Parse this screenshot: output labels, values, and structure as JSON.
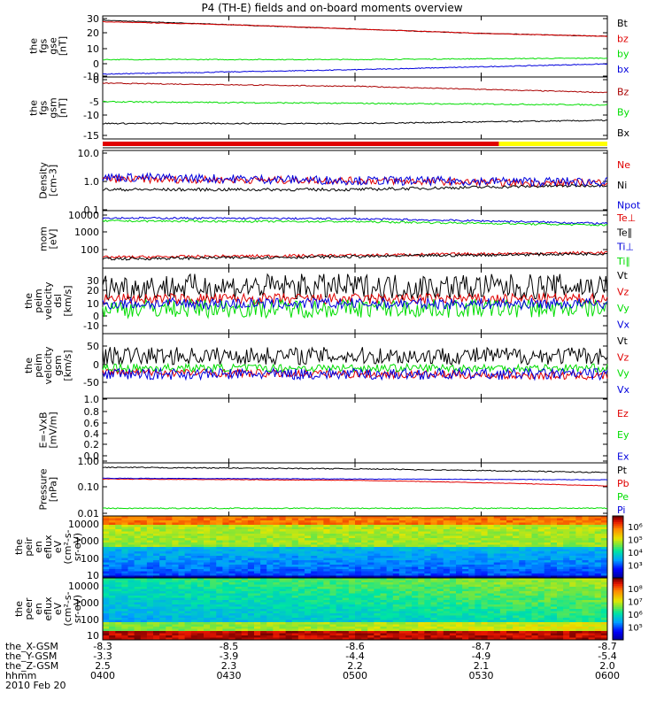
{
  "title": "P4 (TH-E) fields and on-board moments overview",
  "colors": {
    "black": "#000000",
    "red": "#e00000",
    "green": "#00dd00",
    "blue": "#0000dd",
    "yellow": "#ffff00",
    "darkred": "#aa0000"
  },
  "chart_data": [
    {
      "type": "line",
      "ylabel": [
        "the",
        "fgs",
        "gse",
        "[nT]"
      ],
      "yticks": [
        30,
        20,
        10,
        0,
        -10
      ],
      "ylim": [
        -10,
        32
      ],
      "legend": [
        {
          "label": "Bt",
          "color": "black"
        },
        {
          "label": "bz",
          "color": "red"
        },
        {
          "label": "by",
          "color": "green"
        },
        {
          "label": "bx",
          "color": "blue"
        }
      ],
      "series": [
        {
          "name": "Bt",
          "x_hours": [
            4.0,
            4.5,
            5.0,
            5.5,
            6.0
          ],
          "values": [
            29,
            26,
            23,
            20,
            18
          ]
        },
        {
          "name": "bz",
          "x_hours": [
            4.0,
            4.5,
            5.0,
            5.5,
            6.0
          ],
          "values": [
            28,
            26,
            23,
            20,
            18
          ]
        },
        {
          "name": "by",
          "x_hours": [
            4.0,
            5.0,
            6.0
          ],
          "values": [
            2,
            2,
            3
          ]
        },
        {
          "name": "bx",
          "x_hours": [
            4.0,
            5.0,
            6.0
          ],
          "values": [
            -8,
            -5,
            -1
          ]
        }
      ]
    },
    {
      "type": "line",
      "ylabel": [
        "the",
        "fgs",
        "gsm",
        "[nT]"
      ],
      "yticks": [
        0,
        -5,
        -10,
        -15
      ],
      "ylim": [
        -18,
        2
      ],
      "legend": [
        {
          "label": "Bz",
          "color": "darkred"
        },
        {
          "label": "By",
          "color": "green"
        },
        {
          "label": "Bx",
          "color": "black"
        }
      ],
      "series": [
        {
          "name": "Bz",
          "x_hours": [
            4.0,
            5.0,
            6.0
          ],
          "values": [
            0,
            -1,
            -3
          ]
        },
        {
          "name": "By",
          "x_hours": [
            4.0,
            5.0,
            6.0
          ],
          "values": [
            -6,
            -6.5,
            -7
          ]
        },
        {
          "name": "Bx",
          "x_hours": [
            4.0,
            5.0,
            6.0
          ],
          "values": [
            -13,
            -13,
            -12
          ]
        }
      ]
    },
    {
      "type": "line",
      "ylabel": [
        "Density",
        "[cm-3]"
      ],
      "yticks": [
        "10.0",
        "1.0",
        "0.1"
      ],
      "yscale": "log",
      "ylim": [
        0.1,
        10
      ],
      "legend": [
        {
          "label": "Ne",
          "color": "red"
        },
        {
          "label": "Ni",
          "color": "black"
        },
        {
          "label": "Npot",
          "color": "blue"
        }
      ],
      "series": [
        {
          "name": "Ne",
          "x_hours": [
            4.0,
            5.0,
            5.8,
            6.0
          ],
          "values": [
            1.1,
            1.0,
            0.8,
            0.9
          ]
        },
        {
          "name": "Ni",
          "x_hours": [
            4.0,
            5.0,
            6.0
          ],
          "values": [
            0.5,
            0.5,
            0.7
          ]
        },
        {
          "name": "Npot",
          "x_hours": [
            4.0,
            5.0,
            6.0
          ],
          "values": [
            1.3,
            1.0,
            0.9
          ]
        }
      ]
    },
    {
      "type": "line",
      "ylabel": [
        "mom",
        "[eV]"
      ],
      "yticks": [
        "10000",
        "1000",
        "100"
      ],
      "yscale": "log",
      "ylim": [
        50,
        12000
      ],
      "legend": [
        {
          "label": "Te⊥",
          "color": "red"
        },
        {
          "label": "Te∥",
          "color": "black"
        },
        {
          "label": "Ti⊥",
          "color": "blue"
        },
        {
          "label": "Ti∥",
          "color": "green"
        }
      ],
      "series": [
        {
          "name": "Te⊥",
          "x_hours": [
            4.0,
            5.0,
            6.0
          ],
          "values": [
            140,
            170,
            220
          ]
        },
        {
          "name": "Te∥",
          "x_hours": [
            4.0,
            5.0,
            6.0
          ],
          "values": [
            120,
            150,
            200
          ]
        },
        {
          "name": "Ti⊥",
          "x_hours": [
            4.0,
            5.0,
            6.0
          ],
          "values": [
            6000,
            5500,
            3500
          ]
        },
        {
          "name": "Ti∥",
          "x_hours": [
            4.0,
            5.0,
            6.0
          ],
          "values": [
            4500,
            4200,
            3000
          ]
        }
      ]
    },
    {
      "type": "line",
      "ylabel": [
        "the",
        "peim",
        "velocity",
        "dsl",
        "[km/s]"
      ],
      "yticks": [
        30,
        20,
        10,
        0,
        -10,
        -20,
        -30
      ],
      "ylim": [
        -35,
        35
      ],
      "legend": [
        {
          "label": "Vt",
          "color": "black"
        },
        {
          "label": "Vz",
          "color": "red"
        },
        {
          "label": "Vy",
          "color": "green"
        },
        {
          "label": "Vx",
          "color": "blue"
        }
      ],
      "series": [
        {
          "name": "Vt",
          "x_hours": [
            4.0,
            5.0,
            6.0
          ],
          "values": [
            15,
            15,
            15
          ]
        },
        {
          "name": "Vz",
          "x_hours": [
            4.0,
            5.0,
            6.0
          ],
          "values": [
            2,
            2,
            2
          ]
        },
        {
          "name": "Vy",
          "x_hours": [
            4.0,
            5.0,
            6.0
          ],
          "values": [
            -8,
            -8,
            -8
          ]
        },
        {
          "name": "Vx",
          "x_hours": [
            4.0,
            5.0,
            6.0
          ],
          "values": [
            -3,
            -3,
            -3
          ]
        }
      ]
    },
    {
      "type": "line",
      "ylabel": [
        "the",
        "peim",
        "velocity",
        "gsm",
        "[km/s]"
      ],
      "yticks": [
        50,
        0,
        -50
      ],
      "ylim": [
        -70,
        90
      ],
      "legend": [
        {
          "label": "Vt",
          "color": "black"
        },
        {
          "label": "Vz",
          "color": "red"
        },
        {
          "label": "Vy",
          "color": "green"
        },
        {
          "label": "Vx",
          "color": "blue"
        }
      ],
      "series": [
        {
          "name": "Vt",
          "x_hours": [
            4.0,
            5.0,
            6.0
          ],
          "values": [
            35,
            35,
            35
          ]
        },
        {
          "name": "Vz",
          "x_hours": [
            4.0,
            5.0,
            6.0
          ],
          "values": [
            -5,
            -10,
            -15
          ]
        },
        {
          "name": "Vy",
          "x_hours": [
            4.0,
            5.0,
            6.0
          ],
          "values": [
            5,
            5,
            5
          ]
        },
        {
          "name": "Vx",
          "x_hours": [
            4.0,
            5.0,
            6.0
          ],
          "values": [
            -10,
            -10,
            -10
          ]
        }
      ]
    },
    {
      "type": "line",
      "ylabel": [
        "E=-VxB",
        "[mV/m]"
      ],
      "yticks": [
        "1.0",
        "0.8",
        "0.6",
        "0.4",
        "0.2",
        "0.0"
      ],
      "ylim": [
        0,
        1
      ],
      "legend": [
        {
          "label": "Ez",
          "color": "red"
        },
        {
          "label": "Ey",
          "color": "green"
        },
        {
          "label": "Ex",
          "color": "blue"
        }
      ],
      "series": []
    },
    {
      "type": "line",
      "ylabel": [
        "Pressure",
        "[nPa]"
      ],
      "yticks": [
        "1.00",
        "0.10",
        "0.01"
      ],
      "yscale": "log",
      "ylim": [
        0.01,
        1.2
      ],
      "legend": [
        {
          "label": "Pt",
          "color": "black"
        },
        {
          "label": "Pb",
          "color": "red"
        },
        {
          "label": "Pe",
          "color": "green"
        },
        {
          "label": "Pi",
          "color": "blue"
        }
      ],
      "series": [
        {
          "name": "Pt",
          "x_hours": [
            4.0,
            5.0,
            6.0
          ],
          "values": [
            0.8,
            0.7,
            0.5
          ]
        },
        {
          "name": "Pb",
          "x_hours": [
            4.0,
            5.0,
            5.5,
            6.0
          ],
          "values": [
            0.28,
            0.25,
            0.2,
            0.15
          ]
        },
        {
          "name": "Pe",
          "x_hours": [
            4.0,
            5.0,
            6.0
          ],
          "values": [
            0.02,
            0.02,
            0.02
          ]
        },
        {
          "name": "Pi",
          "x_hours": [
            4.0,
            5.0,
            6.0
          ],
          "values": [
            0.3,
            0.28,
            0.26
          ]
        }
      ]
    },
    {
      "type": "heatmap",
      "ylabel": [
        "the",
        "peir",
        "en",
        "eflux",
        "eV",
        "(cm²-s-",
        "sr-eV)"
      ],
      "yticks": [
        "10000",
        "1000",
        "100",
        "10"
      ],
      "yscale": "log",
      "ylim": [
        8,
        22000
      ],
      "colorbar": {
        "ticks": [
          "10⁶",
          "10⁵",
          "10⁴",
          "10³"
        ]
      }
    },
    {
      "type": "heatmap",
      "ylabel": [
        "the",
        "peer",
        "en",
        "eflux",
        "eV",
        "(cm²-s-",
        "sr-eV)"
      ],
      "yticks": [
        "10000",
        "1000",
        "100",
        "10"
      ],
      "yscale": "log",
      "ylim": [
        8,
        22000
      ],
      "colorbar": {
        "ticks": [
          "10⁸",
          "10⁷",
          "10⁶",
          "10⁵"
        ]
      }
    }
  ],
  "status_bar": {
    "segments": [
      {
        "from": 4.0,
        "to": 5.57,
        "color": "red"
      },
      {
        "from": 5.57,
        "to": 6.0,
        "color": "yellow"
      }
    ]
  },
  "x_axis": {
    "labels": [
      "the_X-GSM",
      "the_Y-GSM",
      "the_Z-GSM",
      "hhmm",
      "2010 Feb 20"
    ],
    "columns": [
      {
        "x_hours": 4.0,
        "values": [
          "-8.3",
          "-3.3",
          "2.5",
          "0400"
        ]
      },
      {
        "x_hours": 4.5,
        "values": [
          "-8.5",
          "-3.9",
          "2.3",
          "0430"
        ]
      },
      {
        "x_hours": 5.0,
        "values": [
          "-8.6",
          "-4.4",
          "2.2",
          "0500"
        ]
      },
      {
        "x_hours": 5.5,
        "values": [
          "-8.7",
          "-4.9",
          "2.1",
          "0530"
        ]
      },
      {
        "x_hours": 6.0,
        "values": [
          "-8.7",
          "-5.4",
          "2.0",
          "0600"
        ]
      }
    ]
  }
}
